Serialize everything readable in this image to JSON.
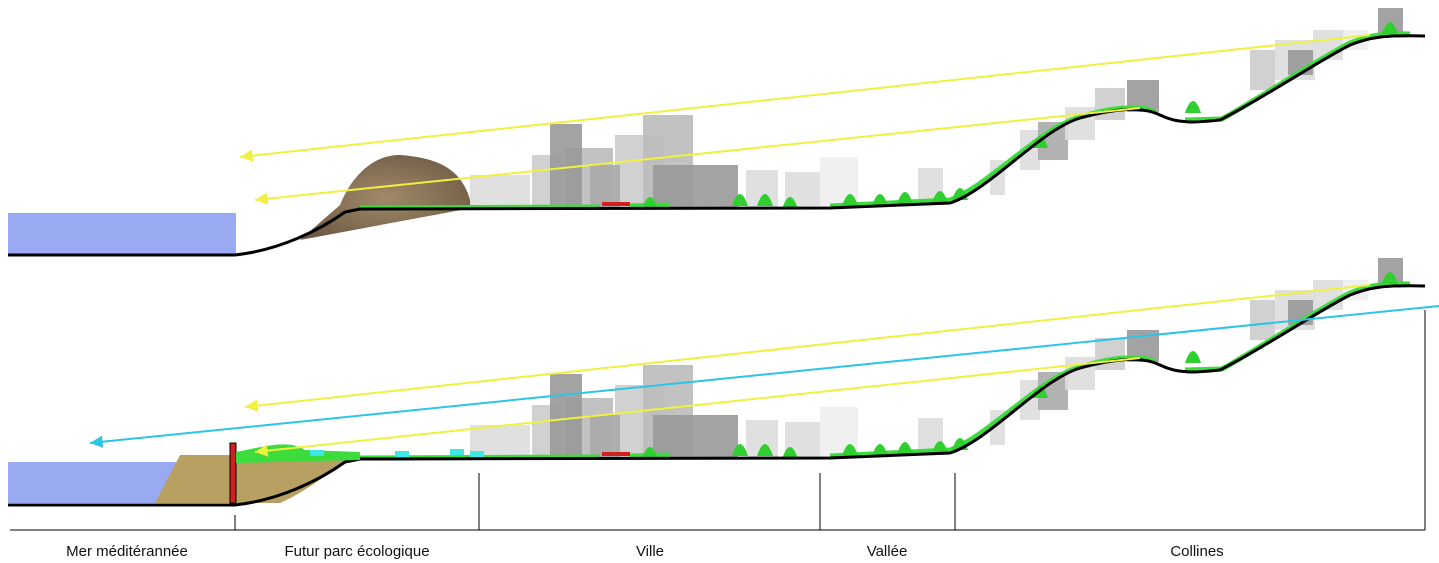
{
  "labels": [
    "Mer méditérannée",
    "Futur parc écologique",
    "Ville",
    "Vallée",
    "Collines"
  ]
}
